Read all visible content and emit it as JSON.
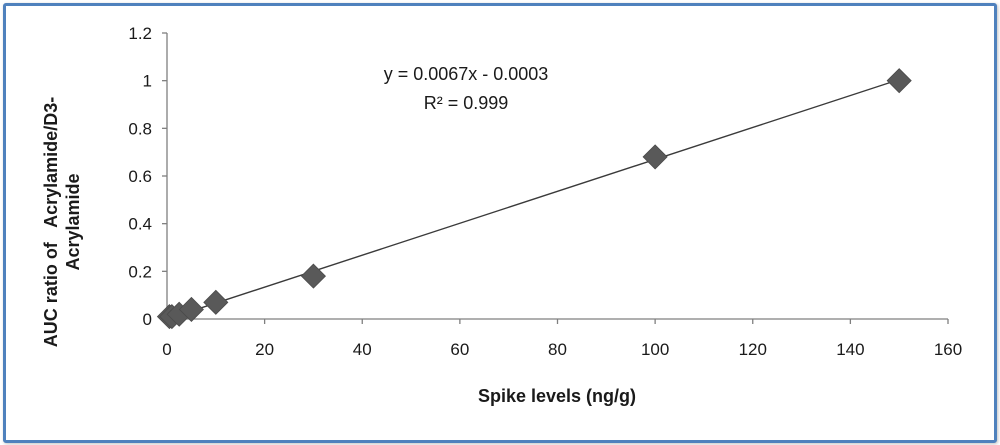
{
  "chart_data": {
    "type": "scatter",
    "title": "",
    "xlabel": "Spike levels (ng/g)",
    "ylabel_lines": [
      "AUC ratio of   Acrylamide/D3-",
      "Acrylamide"
    ],
    "xlim": [
      0,
      160
    ],
    "ylim": [
      0,
      1.2
    ],
    "x_ticks": [
      "0",
      "20",
      "40",
      "60",
      "80",
      "100",
      "120",
      "140",
      "160"
    ],
    "y_ticks": [
      "0",
      "0.2",
      "0.4",
      "0.6",
      "0.8",
      "1",
      "1.2"
    ],
    "grid": false,
    "legend": "none",
    "marker_color": "#595959",
    "series": [
      {
        "x": [
          0.5,
          1,
          2.5,
          5,
          10,
          30,
          100,
          150
        ],
        "y": [
          0.01,
          0.01,
          0.02,
          0.04,
          0.07,
          0.18,
          0.68,
          1.0
        ]
      }
    ],
    "trendline": {
      "slope": 0.0067,
      "intercept": -0.0003,
      "x_range": [
        1,
        150
      ]
    },
    "annotations": [
      "y = 0.0067x - 0.0003",
      "R² = 0.999"
    ]
  }
}
